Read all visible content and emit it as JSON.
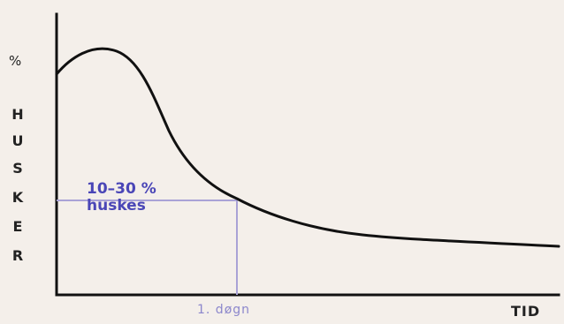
{
  "labels": {
    "percent": "%",
    "y_axis_letters": [
      "H",
      "U",
      "S",
      "K",
      "E",
      "R"
    ],
    "callout_line1": "10–30 %",
    "callout_line2": "huskes",
    "x_marker": "1. døgn",
    "x_axis": "TID"
  },
  "colors": {
    "background": "#f4efea",
    "axes": "#111111",
    "curve": "#111111",
    "guides": "#a9a2d6",
    "callout_text": "#4a46b7",
    "marker_text": "#8c87cc"
  }
}
